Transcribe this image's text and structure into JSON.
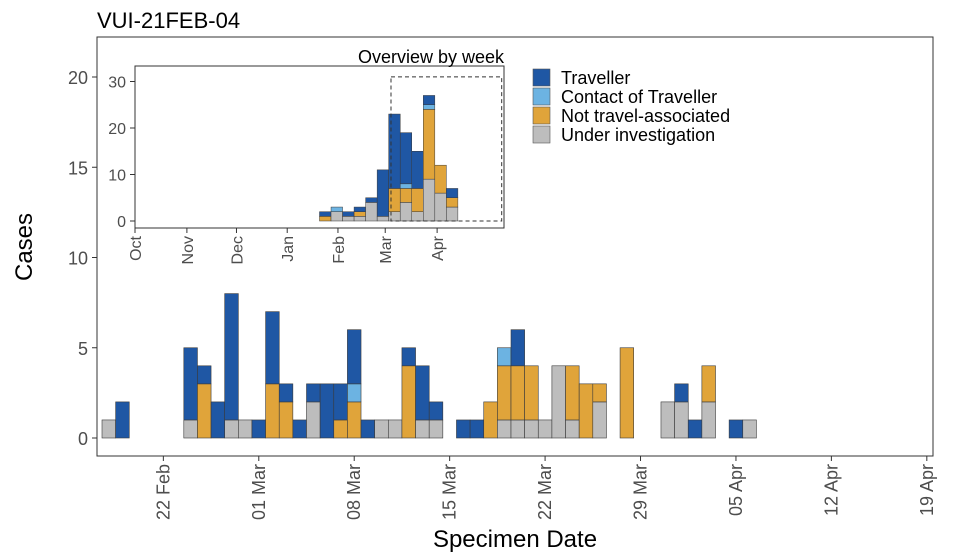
{
  "colors": {
    "traveller": "#1f57a4",
    "contact": "#6cb3e2",
    "not_travel": "#e0a43a",
    "investigation": "#bdbdbd",
    "tick_text": "#4d4d4d",
    "frame": "#333333"
  },
  "chart_data": [
    {
      "type": "bar",
      "stacked": true,
      "title": "VUI-21FEB-04",
      "xlabel": "Specimen Date",
      "ylabel": "Cases",
      "ylim": [
        0,
        21
      ],
      "yticks": [
        0,
        5,
        10,
        15,
        20
      ],
      "x_day_range": [
        0,
        59
      ],
      "x_day_origin": "2021-02-18",
      "xticks": [
        {
          "day": 4,
          "label": "22 Feb"
        },
        {
          "day": 11,
          "label": "01 Mar"
        },
        {
          "day": 18,
          "label": "08 Mar"
        },
        {
          "day": 25,
          "label": "15 Mar"
        },
        {
          "day": 32,
          "label": "22 Mar"
        },
        {
          "day": 39,
          "label": "29 Mar"
        },
        {
          "day": 46,
          "label": "05 Apr"
        },
        {
          "day": 53,
          "label": "12 Apr"
        },
        {
          "day": 60,
          "label": "19 Apr"
        }
      ],
      "series_order": [
        "investigation",
        "not_travel",
        "contact",
        "traveller"
      ],
      "series": [
        {
          "key": "traveller",
          "name": "Traveller"
        },
        {
          "key": "contact",
          "name": "Contact of Traveller"
        },
        {
          "key": "not_travel",
          "name": "Not travel-associated"
        },
        {
          "key": "investigation",
          "name": "Under investigation"
        }
      ],
      "bars": [
        {
          "day": 0,
          "investigation": 1,
          "not_travel": 0,
          "contact": 0,
          "traveller": 0
        },
        {
          "day": 1,
          "investigation": 0,
          "not_travel": 0,
          "contact": 0,
          "traveller": 2
        },
        {
          "day": 6,
          "investigation": 1,
          "not_travel": 0,
          "contact": 0,
          "traveller": 4
        },
        {
          "day": 7,
          "investigation": 0,
          "not_travel": 3,
          "contact": 0,
          "traveller": 1
        },
        {
          "day": 8,
          "investigation": 0,
          "not_travel": 0,
          "contact": 0,
          "traveller": 2
        },
        {
          "day": 9,
          "investigation": 1,
          "not_travel": 0,
          "contact": 0,
          "traveller": 7
        },
        {
          "day": 10,
          "investigation": 1,
          "not_travel": 0,
          "contact": 0,
          "traveller": 0
        },
        {
          "day": 11,
          "investigation": 0,
          "not_travel": 0,
          "contact": 0,
          "traveller": 1
        },
        {
          "day": 12,
          "investigation": 0,
          "not_travel": 3,
          "contact": 0,
          "traveller": 4
        },
        {
          "day": 13,
          "investigation": 0,
          "not_travel": 2,
          "contact": 0,
          "traveller": 1
        },
        {
          "day": 14,
          "investigation": 0,
          "not_travel": 0,
          "contact": 0,
          "traveller": 1
        },
        {
          "day": 15,
          "investigation": 2,
          "not_travel": 0,
          "contact": 0,
          "traveller": 1
        },
        {
          "day": 16,
          "investigation": 0,
          "not_travel": 0,
          "contact": 0,
          "traveller": 3
        },
        {
          "day": 17,
          "investigation": 0,
          "not_travel": 1,
          "contact": 0,
          "traveller": 2
        },
        {
          "day": 18,
          "investigation": 0,
          "not_travel": 2,
          "contact": 1,
          "traveller": 3
        },
        {
          "day": 19,
          "investigation": 0,
          "not_travel": 0,
          "contact": 0,
          "traveller": 1
        },
        {
          "day": 20,
          "investigation": 1,
          "not_travel": 0,
          "contact": 0,
          "traveller": 0
        },
        {
          "day": 21,
          "investigation": 1,
          "not_travel": 0,
          "contact": 0,
          "traveller": 0
        },
        {
          "day": 22,
          "investigation": 0,
          "not_travel": 4,
          "contact": 0,
          "traveller": 1
        },
        {
          "day": 23,
          "investigation": 1,
          "not_travel": 0,
          "contact": 0,
          "traveller": 3
        },
        {
          "day": 24,
          "investigation": 1,
          "not_travel": 0,
          "contact": 0,
          "traveller": 1
        },
        {
          "day": 26,
          "investigation": 0,
          "not_travel": 0,
          "contact": 0,
          "traveller": 1
        },
        {
          "day": 27,
          "investigation": 0,
          "not_travel": 0,
          "contact": 0,
          "traveller": 1
        },
        {
          "day": 28,
          "investigation": 0,
          "not_travel": 2,
          "contact": 0,
          "traveller": 0
        },
        {
          "day": 29,
          "investigation": 1,
          "not_travel": 3,
          "contact": 1,
          "traveller": 0
        },
        {
          "day": 30,
          "investigation": 1,
          "not_travel": 3,
          "contact": 0,
          "traveller": 2
        },
        {
          "day": 31,
          "investigation": 1,
          "not_travel": 3,
          "contact": 0,
          "traveller": 0
        },
        {
          "day": 32,
          "investigation": 1,
          "not_travel": 0,
          "contact": 0,
          "traveller": 0
        },
        {
          "day": 33,
          "investigation": 4,
          "not_travel": 0,
          "contact": 0,
          "traveller": 0
        },
        {
          "day": 34,
          "investigation": 1,
          "not_travel": 3,
          "contact": 0,
          "traveller": 0
        },
        {
          "day": 35,
          "investigation": 0,
          "not_travel": 3,
          "contact": 0,
          "traveller": 0
        },
        {
          "day": 36,
          "investigation": 2,
          "not_travel": 1,
          "contact": 0,
          "traveller": 0
        },
        {
          "day": 38,
          "investigation": 0,
          "not_travel": 5,
          "contact": 0,
          "traveller": 0
        },
        {
          "day": 41,
          "investigation": 2,
          "not_travel": 0,
          "contact": 0,
          "traveller": 0
        },
        {
          "day": 42,
          "investigation": 2,
          "not_travel": 0,
          "contact": 0,
          "traveller": 1
        },
        {
          "day": 43,
          "investigation": 0,
          "not_travel": 0,
          "contact": 0,
          "traveller": 1
        },
        {
          "day": 44,
          "investigation": 2,
          "not_travel": 2,
          "contact": 0,
          "traveller": 0
        },
        {
          "day": 46,
          "investigation": 0,
          "not_travel": 0,
          "contact": 0,
          "traveller": 1
        },
        {
          "day": 47,
          "investigation": 1,
          "not_travel": 0,
          "contact": 0,
          "traveller": 0
        }
      ]
    },
    {
      "type": "bar",
      "stacked": true,
      "title": "Overview by week",
      "xlabel": "",
      "ylabel": "",
      "ylim": [
        0,
        31
      ],
      "yticks": [
        0,
        10,
        20,
        30
      ],
      "xlim_weeks": [
        0,
        32
      ],
      "xticks": [
        {
          "week": 0,
          "label": "Oct"
        },
        {
          "week": 4.5,
          "label": "Nov"
        },
        {
          "week": 8.8,
          "label": "Dec"
        },
        {
          "week": 13.2,
          "label": "Jan"
        },
        {
          "week": 17.6,
          "label": "Feb"
        },
        {
          "week": 21.7,
          "label": "Mar"
        },
        {
          "week": 26.2,
          "label": "Apr"
        }
      ],
      "highlight_box": {
        "from_week": 22.2,
        "to_week": 31.8,
        "from_value": 0,
        "to_value": 31
      },
      "series_order": [
        "investigation",
        "not_travel",
        "contact",
        "traveller"
      ],
      "bars": [
        {
          "week": 16.5,
          "investigation": 0,
          "not_travel": 1,
          "contact": 0,
          "traveller": 1
        },
        {
          "week": 17.5,
          "investigation": 2,
          "not_travel": 0,
          "contact": 1,
          "traveller": 0
        },
        {
          "week": 18.5,
          "investigation": 1,
          "not_travel": 0,
          "contact": 0,
          "traveller": 1
        },
        {
          "week": 19.5,
          "investigation": 1,
          "not_travel": 1,
          "contact": 0,
          "traveller": 1
        },
        {
          "week": 20.5,
          "investigation": 4,
          "not_travel": 0,
          "contact": 0,
          "traveller": 1
        },
        {
          "week": 21.5,
          "investigation": 1,
          "not_travel": 0,
          "contact": 0,
          "traveller": 10
        },
        {
          "week": 22.5,
          "investigation": 2,
          "not_travel": 5,
          "contact": 0,
          "traveller": 16
        },
        {
          "week": 23.5,
          "investigation": 4,
          "not_travel": 3,
          "contact": 1,
          "traveller": 11
        },
        {
          "week": 24.5,
          "investigation": 2,
          "not_travel": 5,
          "contact": 0,
          "traveller": 8
        },
        {
          "week": 25.5,
          "investigation": 9,
          "not_travel": 15,
          "contact": 1,
          "traveller": 2
        },
        {
          "week": 26.5,
          "investigation": 6,
          "not_travel": 6,
          "contact": 0,
          "traveller": 0
        },
        {
          "week": 27.5,
          "investigation": 3,
          "not_travel": 2,
          "contact": 0,
          "traveller": 2
        }
      ]
    }
  ]
}
